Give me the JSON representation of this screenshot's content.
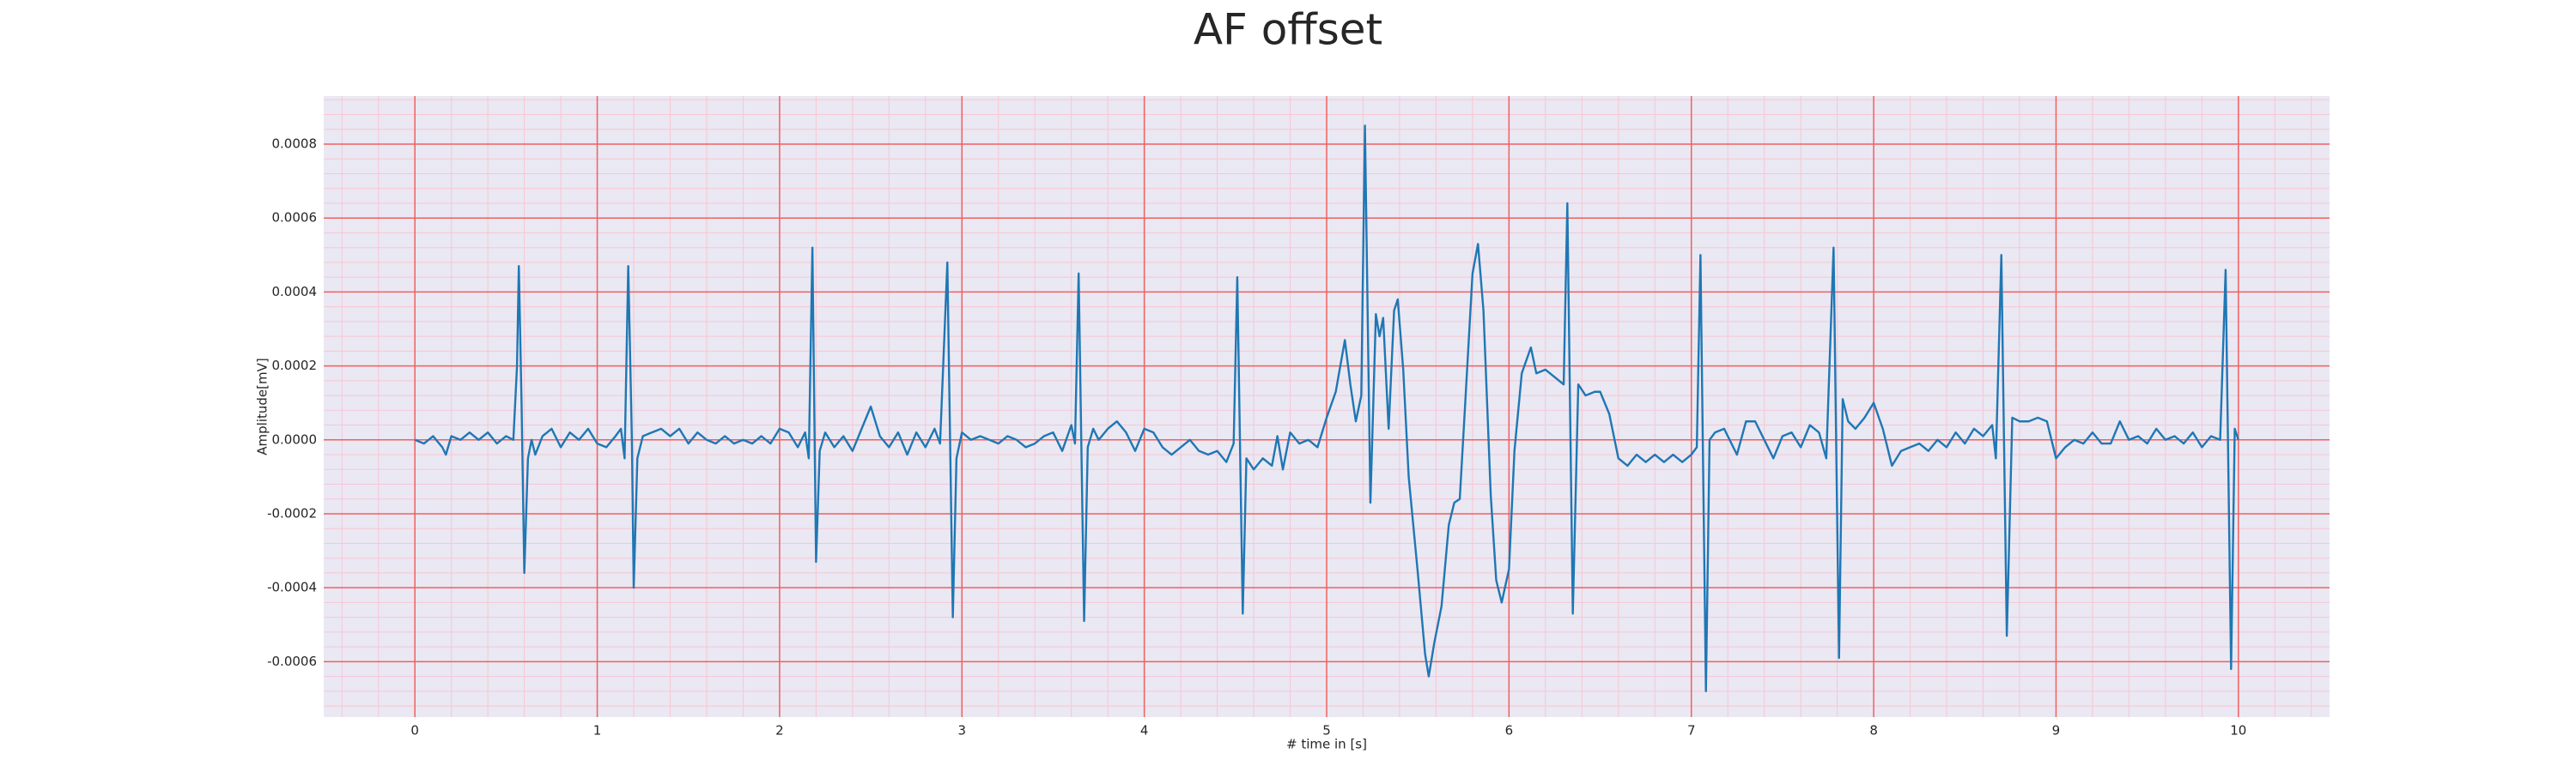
{
  "chart_data": {
    "type": "line",
    "title": "AF offset",
    "xlabel": "# time in [s]",
    "ylabel": "Amplitude[mV]",
    "color": "#1f77b4",
    "background": "#eae8f2",
    "grid": true,
    "grid_color": "#f06060",
    "minor_grid": true,
    "minor_grid_color": "#f7c6d4",
    "xlim": [
      -0.5,
      10.5
    ],
    "xticks": [
      0,
      1,
      2,
      3,
      4,
      5,
      6,
      7,
      8,
      9,
      10
    ],
    "ylim": [
      -0.00075,
      0.00093
    ],
    "yticks": [
      -0.0006,
      -0.0004,
      -0.0002,
      {
        "value": 0,
        "label": "0.0000"
      },
      0.0002,
      0.0004,
      0.0006,
      0.0008
    ],
    "x": [
      0,
      0.05,
      0.1,
      0.15,
      0.17,
      0.2,
      0.25,
      0.3,
      0.35,
      0.4,
      0.45,
      0.5,
      0.54,
      0.56,
      0.57,
      0.585,
      0.6,
      0.62,
      0.64,
      0.66,
      0.7,
      0.75,
      0.8,
      0.85,
      0.9,
      0.95,
      1,
      1.05,
      1.1,
      1.13,
      1.15,
      1.17,
      1.19,
      1.2,
      1.22,
      1.25,
      1.3,
      1.35,
      1.4,
      1.45,
      1.5,
      1.55,
      1.6,
      1.65,
      1.7,
      1.75,
      1.8,
      1.85,
      1.9,
      1.95,
      2,
      2.05,
      2.1,
      2.14,
      2.16,
      2.18,
      2.2,
      2.22,
      2.25,
      2.3,
      2.35,
      2.4,
      2.45,
      2.5,
      2.55,
      2.6,
      2.65,
      2.7,
      2.75,
      2.8,
      2.85,
      2.88,
      2.92,
      2.95,
      2.97,
      3,
      3.05,
      3.1,
      3.15,
      3.2,
      3.25,
      3.3,
      3.35,
      3.4,
      3.45,
      3.5,
      3.55,
      3.6,
      3.62,
      3.64,
      3.67,
      3.69,
      3.72,
      3.75,
      3.8,
      3.85,
      3.9,
      3.95,
      4,
      4.05,
      4.1,
      4.15,
      4.2,
      4.25,
      4.3,
      4.35,
      4.4,
      4.45,
      4.49,
      4.51,
      4.54,
      4.56,
      4.6,
      4.65,
      4.7,
      4.73,
      4.76,
      4.8,
      4.85,
      4.9,
      4.95,
      5,
      5.05,
      5.1,
      5.13,
      5.16,
      5.19,
      5.21,
      5.24,
      5.27,
      5.29,
      5.31,
      5.34,
      5.37,
      5.39,
      5.42,
      5.45,
      5.5,
      5.54,
      5.56,
      5.59,
      5.63,
      5.67,
      5.7,
      5.73,
      5.76,
      5.8,
      5.83,
      5.86,
      5.9,
      5.93,
      5.96,
      6,
      6.03,
      6.07,
      6.12,
      6.15,
      6.2,
      6.25,
      6.3,
      6.32,
      6.35,
      6.38,
      6.42,
      6.47,
      6.5,
      6.55,
      6.6,
      6.65,
      6.7,
      6.75,
      6.8,
      6.85,
      6.9,
      6.95,
      7,
      7.03,
      7.05,
      7.08,
      7.1,
      7.13,
      7.18,
      7.2,
      7.25,
      7.3,
      7.35,
      7.4,
      7.45,
      7.5,
      7.55,
      7.6,
      7.65,
      7.7,
      7.74,
      7.78,
      7.81,
      7.83,
      7.86,
      7.9,
      7.95,
      8,
      8.05,
      8.1,
      8.15,
      8.2,
      8.25,
      8.3,
      8.35,
      8.4,
      8.45,
      8.5,
      8.55,
      8.6,
      8.65,
      8.67,
      8.7,
      8.73,
      8.76,
      8.8,
      8.85,
      8.9,
      8.95,
      9,
      9.05,
      9.1,
      9.15,
      9.2,
      9.25,
      9.3,
      9.35,
      9.4,
      9.45,
      9.5,
      9.55,
      9.6,
      9.65,
      9.7,
      9.75,
      9.8,
      9.85,
      9.9,
      9.93,
      9.96,
      9.98,
      10
    ],
    "values": [
      0,
      -1e-05,
      1e-05,
      -2e-05,
      -4e-05,
      1e-05,
      0,
      2e-05,
      0,
      2e-05,
      -1e-05,
      1e-05,
      0,
      0.0002,
      0.00047,
      0.0001,
      -0.00036,
      -5e-05,
      0,
      -4e-05,
      1e-05,
      3e-05,
      -2e-05,
      2e-05,
      0,
      3e-05,
      -1e-05,
      -2e-05,
      1e-05,
      3e-05,
      -5e-05,
      0.00047,
      0,
      -0.0004,
      -5e-05,
      1e-05,
      2e-05,
      3e-05,
      1e-05,
      3e-05,
      -1e-05,
      2e-05,
      0,
      -1e-05,
      1e-05,
      -1e-05,
      0,
      -1e-05,
      1e-05,
      -1e-05,
      3e-05,
      2e-05,
      -2e-05,
      2e-05,
      -5e-05,
      0.00052,
      -0.00033,
      -3e-05,
      2e-05,
      -2e-05,
      1e-05,
      -3e-05,
      3e-05,
      9e-05,
      1e-05,
      -2e-05,
      2e-05,
      -4e-05,
      2e-05,
      -2e-05,
      3e-05,
      -1e-05,
      0.00048,
      -0.00048,
      -5e-05,
      2e-05,
      0,
      1e-05,
      0,
      -1e-05,
      1e-05,
      0,
      -2e-05,
      -1e-05,
      1e-05,
      2e-05,
      -3e-05,
      4e-05,
      -1e-05,
      0.00045,
      -0.00049,
      -2e-05,
      3e-05,
      0,
      3e-05,
      5e-05,
      2e-05,
      -3e-05,
      3e-05,
      2e-05,
      -2e-05,
      -4e-05,
      -2e-05,
      0,
      -3e-05,
      -4e-05,
      -3e-05,
      -6e-05,
      -1e-05,
      0.00044,
      -0.00047,
      -5e-05,
      -8e-05,
      -5e-05,
      -7e-05,
      1e-05,
      -8e-05,
      2e-05,
      -1e-05,
      0,
      -2e-05,
      6e-05,
      0.00013,
      0.00027,
      0.00015,
      5e-05,
      0.00012,
      0.00085,
      -0.00017,
      0.00034,
      0.00028,
      0.00033,
      3e-05,
      0.00035,
      0.00038,
      0.00019,
      -0.0001,
      -0.00036,
      -0.00058,
      -0.00064,
      -0.00055,
      -0.00045,
      -0.00023,
      -0.00017,
      -0.00016,
      0.0001,
      0.00045,
      0.00053,
      0.00035,
      -0.00015,
      -0.00038,
      -0.00044,
      -0.00035,
      -3e-05,
      0.00018,
      0.00025,
      0.00018,
      0.00019,
      0.00017,
      0.00015,
      0.00064,
      -0.00047,
      0.00015,
      0.00012,
      0.00013,
      0.00013,
      7e-05,
      -5e-05,
      -7e-05,
      -4e-05,
      -6e-05,
      -4e-05,
      -6e-05,
      -4e-05,
      -6e-05,
      -4e-05,
      -2e-05,
      0.0005,
      -0.00068,
      0,
      2e-05,
      3e-05,
      1e-05,
      -4e-05,
      5e-05,
      5e-05,
      0,
      -5e-05,
      1e-05,
      2e-05,
      -2e-05,
      4e-05,
      2e-05,
      -5e-05,
      0.00052,
      -0.00059,
      0.00011,
      5e-05,
      3e-05,
      6e-05,
      0.0001,
      3e-05,
      -7e-05,
      -3e-05,
      -2e-05,
      -1e-05,
      -3e-05,
      0,
      -2e-05,
      2e-05,
      -1e-05,
      3e-05,
      1e-05,
      4e-05,
      -5e-05,
      0.0005,
      -0.00053,
      6e-05,
      5e-05,
      5e-05,
      6e-05,
      5e-05,
      -5e-05,
      -2e-05,
      0,
      -1e-05,
      2e-05,
      -1e-05,
      -1e-05,
      5e-05,
      0,
      1e-05,
      -1e-05,
      3e-05,
      0,
      1e-05,
      -1e-05,
      2e-05,
      -2e-05,
      1e-05,
      0,
      0.00046,
      -0.00062,
      3e-05,
      0
    ]
  }
}
